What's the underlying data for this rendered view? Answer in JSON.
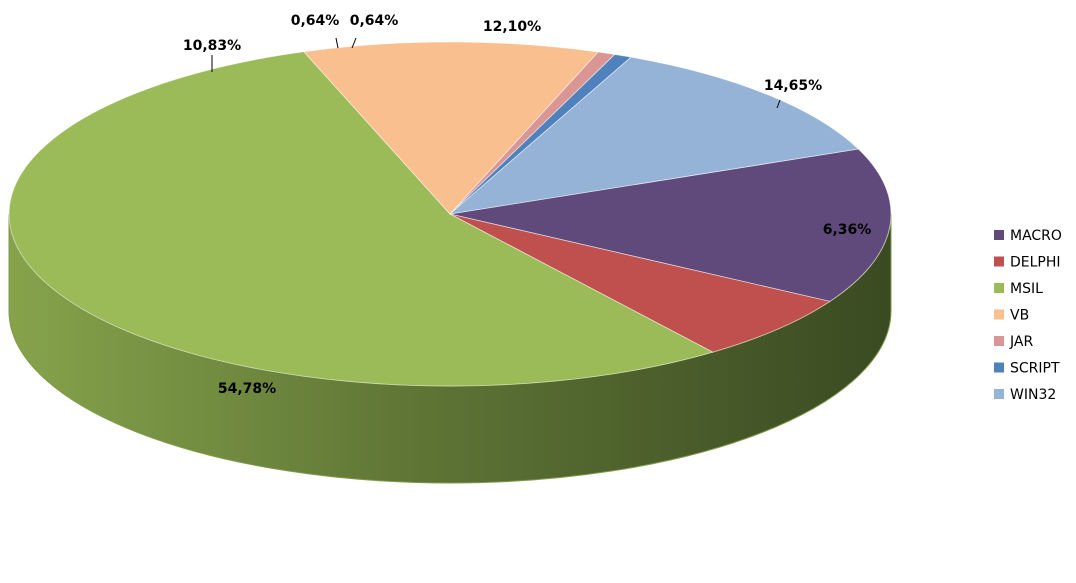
{
  "chart_data": {
    "type": "pie",
    "title": "",
    "style": "3d-exploded-perspective",
    "legend_position": "right",
    "slices": [
      {
        "name": "MACRO",
        "value": 14.65,
        "label": "14,65%",
        "color": "#604A7B"
      },
      {
        "name": "DELPHI",
        "value": 6.36,
        "label": "6,36%",
        "color": "#C0504D"
      },
      {
        "name": "MSIL",
        "value": 54.78,
        "label": "54,78%",
        "color": "#9BBB59"
      },
      {
        "name": "VB",
        "value": 10.83,
        "label": "10,83%",
        "color": "#F9BF8F"
      },
      {
        "name": "JAR",
        "value": 0.64,
        "label": "0,64%",
        "color": "#D99694"
      },
      {
        "name": "SCRIPT",
        "value": 0.64,
        "label": "0,64%",
        "color": "#4F81BD"
      },
      {
        "name": "WIN32",
        "value": 12.1,
        "label": "12,10%",
        "color": "#95B3D7"
      }
    ]
  }
}
